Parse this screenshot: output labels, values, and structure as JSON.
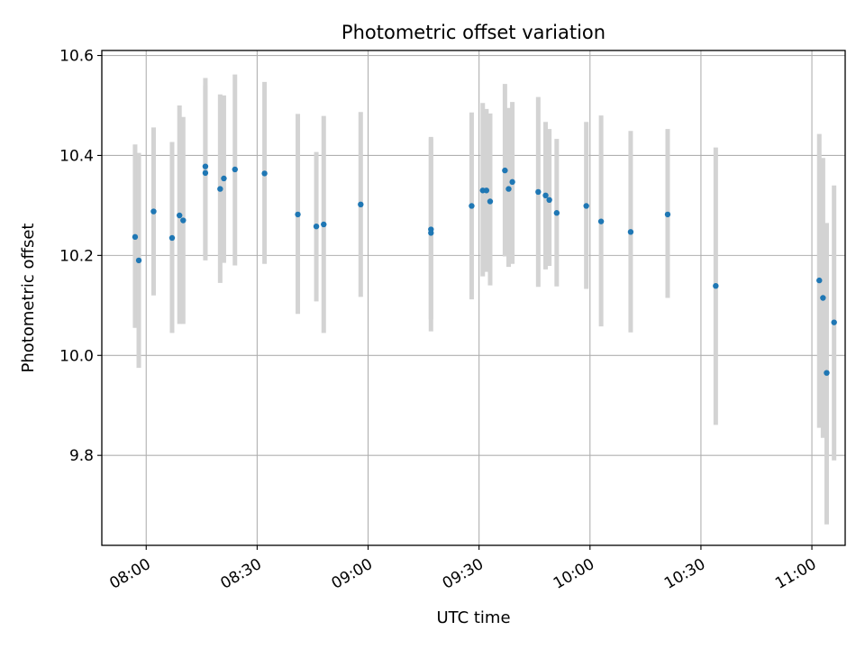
{
  "chart_data": {
    "type": "scatter",
    "title": "Photometric offset variation",
    "xlabel": "UTC time",
    "ylabel": "Photometric offset",
    "grid": true,
    "legend": "none",
    "xlim": [
      "07:48",
      "11:09"
    ],
    "ylim": [
      9.62,
      10.61
    ],
    "x_ticks": [
      "08:00",
      "08:30",
      "09:00",
      "09:30",
      "10:00",
      "10:30",
      "11:00"
    ],
    "y_ticks": [
      "9.8",
      "10.0",
      "10.2",
      "10.4",
      "10.6"
    ],
    "colors": {
      "marker": "#1f77b4",
      "errorbar": "#d3d3d3",
      "grid": "#b0b0b0"
    },
    "series": [
      {
        "points": [
          {
            "x": "07:57",
            "y": 10.237,
            "ylo": 10.055,
            "yhi": 10.422
          },
          {
            "x": "07:58",
            "y": 10.19,
            "ylo": 9.975,
            "yhi": 10.405
          },
          {
            "x": "08:02",
            "y": 10.288,
            "ylo": 10.12,
            "yhi": 10.456
          },
          {
            "x": "08:07",
            "y": 10.235,
            "ylo": 10.045,
            "yhi": 10.427
          },
          {
            "x": "08:09",
            "y": 10.28,
            "ylo": 10.063,
            "yhi": 10.5
          },
          {
            "x": "08:10",
            "y": 10.27,
            "ylo": 10.063,
            "yhi": 10.477
          },
          {
            "x": "08:16",
            "y": 10.365,
            "ylo": 10.19,
            "yhi": 10.54
          },
          {
            "x": "08:16",
            "y": 10.378,
            "ylo": 10.2,
            "yhi": 10.555
          },
          {
            "x": "08:20",
            "y": 10.333,
            "ylo": 10.145,
            "yhi": 10.522
          },
          {
            "x": "08:21",
            "y": 10.354,
            "ylo": 10.185,
            "yhi": 10.52
          },
          {
            "x": "08:24",
            "y": 10.372,
            "ylo": 10.18,
            "yhi": 10.562
          },
          {
            "x": "08:32",
            "y": 10.364,
            "ylo": 10.183,
            "yhi": 10.547
          },
          {
            "x": "08:41",
            "y": 10.282,
            "ylo": 10.083,
            "yhi": 10.483
          },
          {
            "x": "08:46",
            "y": 10.258,
            "ylo": 10.108,
            "yhi": 10.407
          },
          {
            "x": "08:48",
            "y": 10.262,
            "ylo": 10.045,
            "yhi": 10.479
          },
          {
            "x": "08:58",
            "y": 10.302,
            "ylo": 10.117,
            "yhi": 10.487
          },
          {
            "x": "09:17",
            "y": 10.245,
            "ylo": 10.048,
            "yhi": 10.437
          },
          {
            "x": "09:17",
            "y": 10.252,
            "ylo": 10.072,
            "yhi": 10.434
          },
          {
            "x": "09:28",
            "y": 10.299,
            "ylo": 10.112,
            "yhi": 10.486
          },
          {
            "x": "09:31",
            "y": 10.33,
            "ylo": 10.158,
            "yhi": 10.505
          },
          {
            "x": "09:32",
            "y": 10.33,
            "ylo": 10.167,
            "yhi": 10.493
          },
          {
            "x": "09:33",
            "y": 10.308,
            "ylo": 10.14,
            "yhi": 10.484
          },
          {
            "x": "09:37",
            "y": 10.37,
            "ylo": 10.198,
            "yhi": 10.543
          },
          {
            "x": "09:38",
            "y": 10.333,
            "ylo": 10.177,
            "yhi": 10.495
          },
          {
            "x": "09:39",
            "y": 10.347,
            "ylo": 10.183,
            "yhi": 10.507
          },
          {
            "x": "09:46",
            "y": 10.327,
            "ylo": 10.137,
            "yhi": 10.517
          },
          {
            "x": "09:48",
            "y": 10.32,
            "ylo": 10.172,
            "yhi": 10.467
          },
          {
            "x": "09:49",
            "y": 10.311,
            "ylo": 10.179,
            "yhi": 10.453
          },
          {
            "x": "09:51",
            "y": 10.285,
            "ylo": 10.138,
            "yhi": 10.433
          },
          {
            "x": "09:59",
            "y": 10.299,
            "ylo": 10.133,
            "yhi": 10.467
          },
          {
            "x": "10:03",
            "y": 10.268,
            "ylo": 10.058,
            "yhi": 10.48
          },
          {
            "x": "10:11",
            "y": 10.247,
            "ylo": 10.046,
            "yhi": 10.449
          },
          {
            "x": "10:21",
            "y": 10.282,
            "ylo": 10.115,
            "yhi": 10.453
          },
          {
            "x": "10:34",
            "y": 10.139,
            "ylo": 9.861,
            "yhi": 10.416
          },
          {
            "x": "11:02",
            "y": 10.15,
            "ylo": 9.855,
            "yhi": 10.443
          },
          {
            "x": "11:03",
            "y": 10.115,
            "ylo": 9.835,
            "yhi": 10.395
          },
          {
            "x": "11:04",
            "y": 9.965,
            "ylo": 9.662,
            "yhi": 10.265
          },
          {
            "x": "11:06",
            "y": 10.066,
            "ylo": 9.79,
            "yhi": 10.34
          }
        ]
      }
    ]
  }
}
